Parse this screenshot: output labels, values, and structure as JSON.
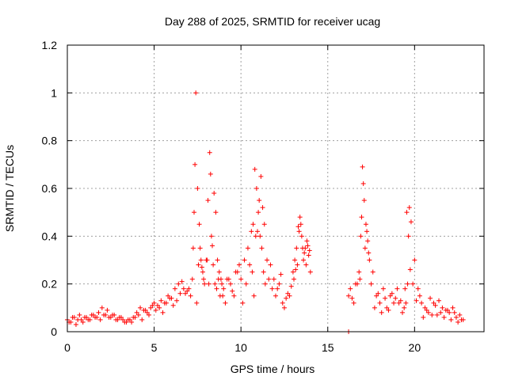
{
  "chart_data": {
    "type": "scatter",
    "title": "Day 288 of 2025, SRMTID for receiver ucag",
    "xlabel": "GPS time / hours",
    "ylabel": "SRMTID / TECUs",
    "xlim": [
      0,
      24
    ],
    "ylim": [
      0,
      1.2
    ],
    "xticks": [
      0,
      5,
      10,
      15,
      20
    ],
    "xtick_labels": [
      "0",
      "5",
      "10",
      "15",
      "20"
    ],
    "yticks": [
      0,
      0.2,
      0.4,
      0.6,
      0.8,
      1.0,
      1.2
    ],
    "ytick_labels": [
      "0",
      "0.2",
      "0.4",
      "0.6",
      "0.8",
      "1",
      "1.2"
    ],
    "grid": true,
    "marker": "+",
    "color": "#ff0000",
    "series": [
      {
        "name": "SRMTID",
        "x": [
          0.0,
          0.2,
          0.4,
          0.6,
          0.8,
          1.0,
          1.2,
          1.4,
          1.6,
          1.8,
          2.0,
          2.2,
          2.4,
          2.6,
          2.8,
          3.0,
          3.2,
          3.4,
          3.6,
          3.8,
          4.0,
          4.2,
          4.4,
          4.6,
          4.8,
          5.0,
          5.2,
          5.4,
          5.6,
          5.8,
          6.0,
          6.2,
          6.4,
          6.6,
          6.8,
          7.0,
          7.2,
          7.25,
          7.3,
          7.35,
          7.4,
          7.5,
          7.6,
          7.7,
          7.8,
          7.9,
          8.0,
          8.1,
          8.2,
          8.25,
          8.3,
          8.4,
          8.5,
          8.6,
          8.7,
          8.8,
          8.9,
          9.0,
          9.2,
          9.4,
          9.6,
          9.8,
          10.0,
          10.2,
          10.4,
          10.6,
          10.7,
          10.8,
          10.9,
          11.0,
          11.1,
          11.2,
          11.3,
          11.4,
          11.6,
          11.8,
          12.0,
          12.2,
          12.4,
          12.6,
          12.8,
          13.0,
          13.1,
          13.2,
          13.3,
          13.4,
          13.5,
          13.6,
          13.7,
          13.8,
          13.9,
          14.0,
          16.2,
          16.4,
          16.6,
          16.8,
          16.9,
          17.0,
          17.1,
          17.2,
          17.3,
          17.4,
          17.6,
          17.8,
          18.0,
          18.2,
          18.4,
          18.6,
          18.8,
          19.0,
          19.2,
          19.4,
          19.5,
          19.6,
          19.7,
          19.8,
          20.0,
          20.2,
          20.4,
          20.6,
          20.8,
          21.0,
          21.2,
          21.4,
          21.6,
          21.8,
          22.0,
          22.2,
          22.4,
          22.6,
          22.8,
          0.1,
          0.3,
          0.5,
          0.7,
          0.9,
          1.1,
          1.3,
          1.5,
          1.7,
          1.9,
          2.1,
          2.3,
          2.5,
          2.7,
          2.9,
          3.1,
          3.3,
          3.5,
          3.7,
          3.9,
          4.1,
          4.3,
          4.5,
          4.7,
          4.9,
          5.1,
          5.3,
          5.5,
          5.7,
          5.9,
          6.1,
          6.3,
          6.5,
          6.7,
          6.9,
          7.1,
          7.45,
          7.55,
          7.65,
          7.75,
          7.85,
          8.05,
          8.15,
          8.35,
          8.45,
          8.55,
          8.65,
          8.75,
          8.85,
          8.95,
          9.1,
          9.3,
          9.5,
          9.7,
          9.9,
          10.1,
          10.3,
          10.5,
          10.65,
          10.75,
          10.85,
          10.95,
          11.05,
          11.15,
          11.25,
          11.35,
          11.5,
          11.7,
          11.9,
          12.1,
          12.3,
          12.5,
          12.7,
          12.9,
          13.05,
          13.15,
          13.25,
          13.35,
          13.45,
          13.55,
          13.65,
          13.75,
          13.85,
          13.95,
          16.3,
          16.5,
          16.7,
          16.85,
          16.95,
          17.05,
          17.15,
          17.25,
          17.35,
          17.5,
          17.7,
          17.9,
          18.1,
          18.3,
          18.5,
          18.7,
          18.9,
          19.1,
          19.3,
          19.45,
          19.55,
          19.65,
          19.75,
          19.9,
          20.1,
          20.3,
          20.5,
          20.7,
          20.9,
          21.1,
          21.3,
          21.5,
          21.7,
          21.9,
          22.1,
          22.3,
          22.5,
          22.7,
          16.2
        ],
        "y": [
          0.05,
          0.04,
          0.06,
          0.05,
          0.05,
          0.06,
          0.05,
          0.07,
          0.06,
          0.08,
          0.1,
          0.07,
          0.06,
          0.07,
          0.05,
          0.06,
          0.05,
          0.04,
          0.05,
          0.06,
          0.08,
          0.1,
          0.09,
          0.08,
          0.1,
          0.12,
          0.11,
          0.13,
          0.12,
          0.15,
          0.14,
          0.18,
          0.2,
          0.21,
          0.16,
          0.18,
          0.22,
          0.35,
          0.5,
          0.7,
          1.0,
          0.6,
          0.45,
          0.3,
          0.25,
          0.2,
          0.3,
          0.55,
          0.75,
          0.66,
          0.4,
          0.28,
          0.2,
          0.18,
          0.22,
          0.15,
          0.2,
          0.18,
          0.22,
          0.2,
          0.15,
          0.25,
          0.22,
          0.3,
          0.35,
          0.42,
          0.45,
          0.68,
          0.6,
          0.5,
          0.4,
          0.35,
          0.25,
          0.2,
          0.22,
          0.18,
          0.15,
          0.2,
          0.12,
          0.14,
          0.15,
          0.25,
          0.3,
          0.35,
          0.44,
          0.48,
          0.4,
          0.3,
          0.35,
          0.38,
          0.32,
          0.25,
          0.15,
          0.14,
          0.2,
          0.25,
          0.4,
          0.69,
          0.55,
          0.45,
          0.38,
          0.3,
          0.25,
          0.15,
          0.12,
          0.18,
          0.1,
          0.15,
          0.12,
          0.18,
          0.13,
          0.1,
          0.12,
          0.2,
          0.52,
          0.46,
          0.3,
          0.18,
          0.12,
          0.1,
          0.08,
          0.07,
          0.11,
          0.13,
          0.1,
          0.09,
          0.08,
          0.1,
          0.06,
          0.07,
          0.05,
          0.04,
          0.06,
          0.03,
          0.07,
          0.04,
          0.06,
          0.05,
          0.07,
          0.06,
          0.05,
          0.07,
          0.09,
          0.06,
          0.07,
          0.05,
          0.06,
          0.04,
          0.05,
          0.04,
          0.06,
          0.07,
          0.05,
          0.09,
          0.07,
          0.11,
          0.09,
          0.1,
          0.08,
          0.12,
          0.14,
          0.11,
          0.13,
          0.16,
          0.18,
          0.17,
          0.15,
          0.12,
          0.28,
          0.35,
          0.27,
          0.22,
          0.3,
          0.2,
          0.36,
          0.58,
          0.5,
          0.3,
          0.25,
          0.22,
          0.15,
          0.12,
          0.22,
          0.17,
          0.25,
          0.28,
          0.12,
          0.2,
          0.28,
          0.25,
          0.15,
          0.4,
          0.42,
          0.55,
          0.65,
          0.52,
          0.45,
          0.3,
          0.28,
          0.22,
          0.18,
          0.24,
          0.1,
          0.16,
          0.19,
          0.22,
          0.26,
          0.28,
          0.42,
          0.45,
          0.35,
          0.33,
          0.28,
          0.36,
          0.34,
          0.18,
          0.12,
          0.2,
          0.22,
          0.48,
          0.62,
          0.35,
          0.42,
          0.33,
          0.2,
          0.1,
          0.16,
          0.08,
          0.14,
          0.09,
          0.16,
          0.14,
          0.12,
          0.08,
          0.18,
          0.5,
          0.4,
          0.26,
          0.2,
          0.13,
          0.15,
          0.06,
          0.09,
          0.14,
          0.12,
          0.07,
          0.08,
          0.06,
          0.09,
          0.05,
          0.08,
          0.04,
          0.05,
          0.0
        ]
      }
    ]
  }
}
